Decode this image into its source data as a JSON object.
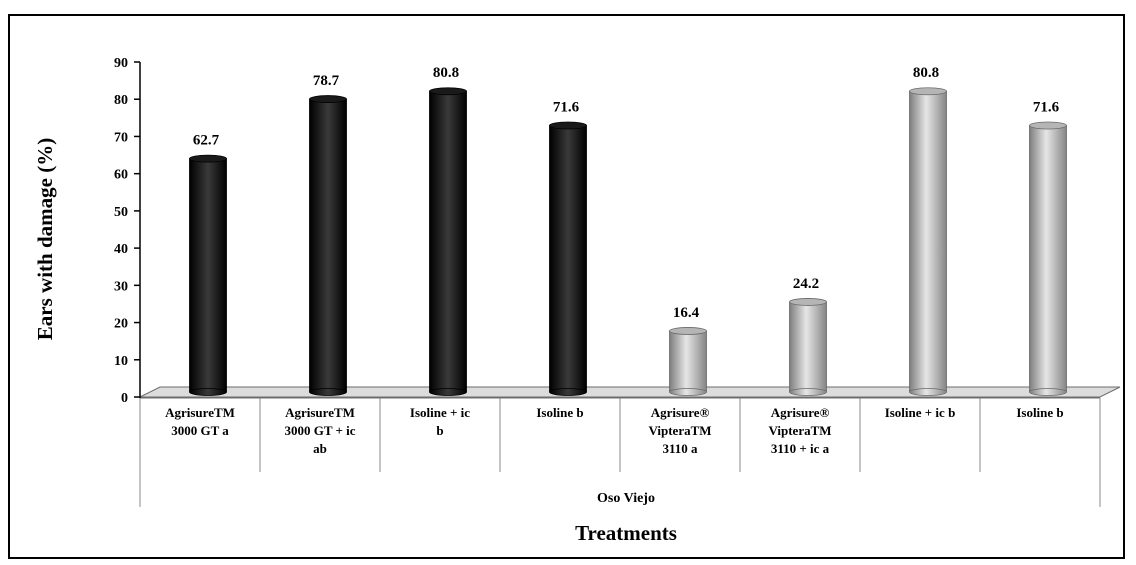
{
  "chart_data": {
    "type": "bar",
    "title": "",
    "xlabel": "Treatments",
    "ylabel": "Ears with damage  (%)",
    "ylim": [
      0,
      90
    ],
    "yticks": [
      0,
      10,
      20,
      30,
      40,
      50,
      60,
      70,
      80,
      90
    ],
    "group_label": "Oso Viejo",
    "categories": [
      [
        "AgrisureTM",
        "3000 GT  a"
      ],
      [
        "AgrisureTM",
        "3000 GT + ic",
        "ab"
      ],
      [
        "Isoline + ic",
        "b"
      ],
      [
        "Isoline  b"
      ],
      [
        "Agrisure®",
        "VipteraTM",
        "3110  a"
      ],
      [
        "Agrisure®",
        "VipteraTM",
        "3110 + ic a"
      ],
      [
        "Isoline + ic b"
      ],
      [
        "Isoline b"
      ]
    ],
    "values": [
      62.7,
      78.7,
      80.8,
      71.6,
      16.4,
      24.2,
      80.8,
      71.6
    ],
    "value_labels": [
      "62.7",
      "78.7",
      "80.8",
      "71.6",
      "16.4",
      "24.2",
      "80.8",
      "71.6"
    ],
    "bar_styles": [
      "black",
      "black",
      "black",
      "black",
      "gray",
      "gray",
      "gray",
      "gray"
    ],
    "grid": false,
    "legend": "none",
    "colors": {
      "black_bar": "#000000",
      "gray_bar": "#9a9a9a",
      "floor": "#dcdcdc"
    }
  }
}
